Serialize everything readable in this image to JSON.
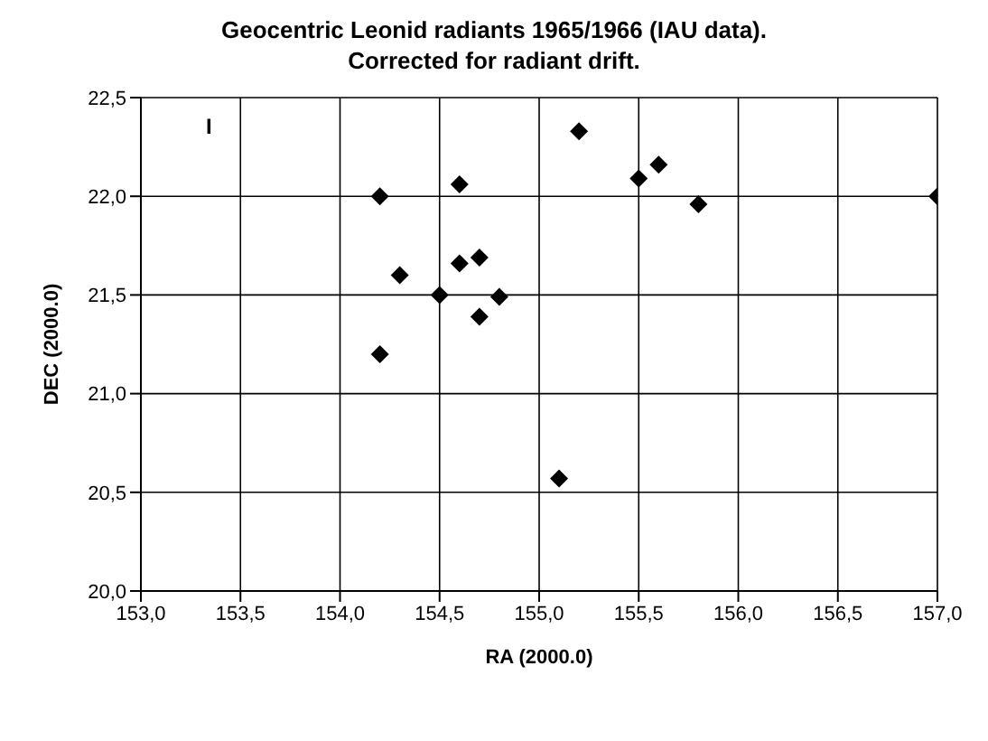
{
  "chart_data": {
    "type": "scatter",
    "title": "Geocentric Leonid radiants 1965/1966 (IAU data).\nCorrected for radiant drift.",
    "xlabel": "RA (2000.0)",
    "ylabel": "DEC (2000.0)",
    "x": [
      154.2,
      154.6,
      154.3,
      154.5,
      154.6,
      154.7,
      154.8,
      154.7,
      154.2,
      155.1,
      155.2,
      155.5,
      155.6,
      155.8,
      157.0
    ],
    "series": [
      {
        "color": "#000000",
        "values": [
          22.0,
          22.06,
          21.6,
          21.5,
          21.66,
          21.69,
          21.49,
          21.39,
          21.2,
          20.57,
          22.33,
          22.09,
          22.16,
          21.96,
          22.0
        ]
      }
    ],
    "xlim": [
      153.0,
      157.0
    ],
    "xticks": [
      {
        "value": 153.0,
        "label": "153,0"
      },
      {
        "value": 153.5,
        "label": "153,5"
      },
      {
        "value": 154.0,
        "label": "154,0"
      },
      {
        "value": 154.5,
        "label": "154,5"
      },
      {
        "value": 155.0,
        "label": "155,0"
      },
      {
        "value": 155.5,
        "label": "155,5"
      },
      {
        "value": 156.0,
        "label": "156,0"
      },
      {
        "value": 156.5,
        "label": "156,5"
      },
      {
        "value": 157.0,
        "label": "157,0"
      }
    ],
    "ylim": [
      20.0,
      22.5
    ],
    "yticks": [
      {
        "value": 20.0,
        "label": "20,0"
      },
      {
        "value": 20.5,
        "label": "20,5"
      },
      {
        "value": 21.0,
        "label": "21,0"
      },
      {
        "value": 21.5,
        "label": "21,5"
      },
      {
        "value": 22.0,
        "label": "22,0"
      },
      {
        "value": 22.5,
        "label": "22,5"
      }
    ],
    "annotations": [
      "I"
    ],
    "grid": true,
    "marker": "diamond",
    "legend": false
  }
}
